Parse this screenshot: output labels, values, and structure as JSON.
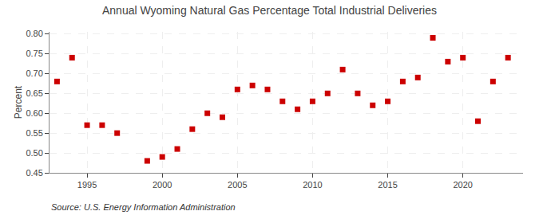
{
  "chart_data": {
    "type": "scatter",
    "title": "Annual Wyoming Natural Gas Percentage Total Industrial Deliveries",
    "ylabel": "Percent",
    "annotations": [
      "Source: U.S. Energy Information Administration"
    ],
    "x": [
      1993,
      1994,
      1995,
      1996,
      1997,
      1999,
      2000,
      2001,
      2002,
      2003,
      2004,
      2005,
      2006,
      2007,
      2008,
      2009,
      2010,
      2011,
      2012,
      2013,
      2014,
      2015,
      2016,
      2017,
      2018,
      2019,
      2020,
      2021,
      2022,
      2023
    ],
    "values": [
      0.68,
      0.74,
      0.57,
      0.57,
      0.55,
      0.48,
      0.49,
      0.51,
      0.56,
      0.6,
      0.59,
      0.66,
      0.67,
      0.66,
      0.63,
      0.61,
      0.63,
      0.65,
      0.71,
      0.65,
      0.62,
      0.63,
      0.68,
      0.69,
      0.79,
      0.73,
      0.74,
      0.58,
      0.68,
      0.74
    ],
    "color": "#cc0000",
    "marker": "square",
    "xlim": [
      1992.5,
      2024
    ],
    "xticks": [
      1995,
      2000,
      2005,
      2010,
      2015,
      2020
    ],
    "ylim": [
      0.45,
      0.805
    ],
    "yticks": [
      0.45,
      {
        "value": 0.5,
        "label": "0.50"
      },
      0.55,
      {
        "value": 0.6,
        "label": "0.60"
      },
      0.65,
      {
        "value": 0.7,
        "label": "0.70"
      },
      0.75,
      {
        "value": 0.8,
        "label": "0.80"
      }
    ],
    "grid": true
  }
}
